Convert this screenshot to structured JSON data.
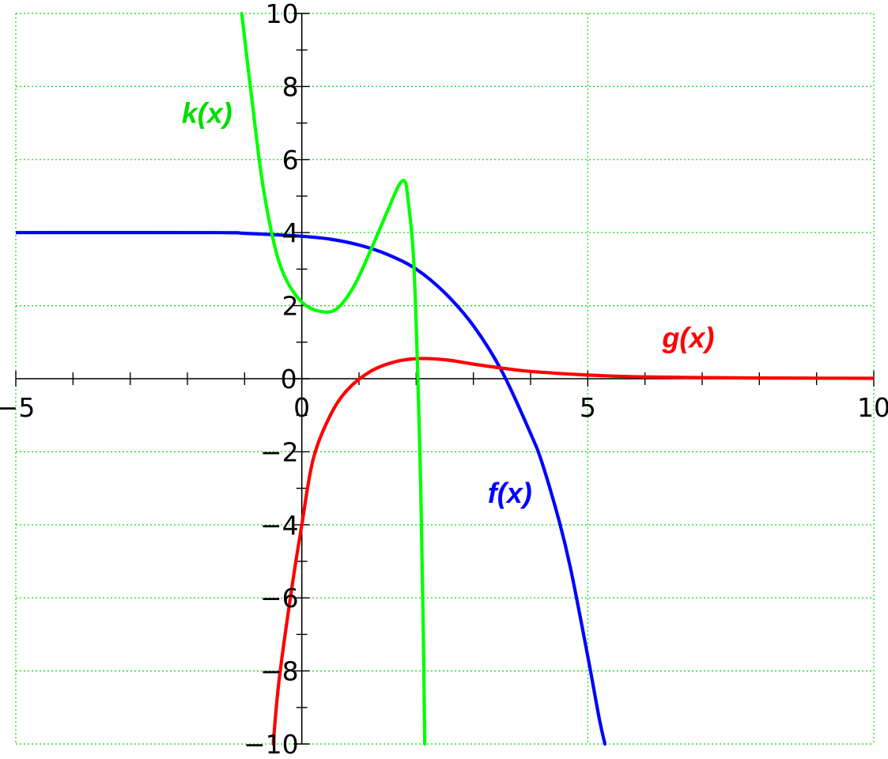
{
  "chart_data": {
    "type": "line",
    "title": "",
    "xlabel": "",
    "ylabel": "",
    "xlim": [
      -5,
      10
    ],
    "ylim": [
      -10,
      10
    ],
    "grid": true,
    "grid_color": "#00dd00",
    "x_tick_labels": [
      "−5",
      "0",
      "5",
      "10"
    ],
    "x_tick_values": [
      -5,
      0,
      5,
      10
    ],
    "y_tick_labels": [
      "−10",
      "−8",
      "−6",
      "−4",
      "−2",
      "0",
      "2",
      "4",
      "6",
      "8",
      "10"
    ],
    "y_tick_values": [
      -10,
      -8,
      -6,
      -4,
      -2,
      0,
      2,
      4,
      6,
      8,
      10
    ],
    "series": [
      {
        "name": "f(x)",
        "color": "#0000ff",
        "points": [
          [
            -5,
            4.0
          ],
          [
            -1.5,
            4.0
          ],
          [
            -1,
            3.98
          ],
          [
            0,
            3.9
          ],
          [
            0.5,
            3.82
          ],
          [
            1,
            3.66
          ],
          [
            1.5,
            3.4
          ],
          [
            2,
            3.0
          ],
          [
            2.5,
            2.35
          ],
          [
            3,
            1.45
          ],
          [
            3.5,
            0.2
          ],
          [
            4,
            -1.5
          ],
          [
            4.2,
            -2.3
          ],
          [
            4.5,
            -3.9
          ],
          [
            4.7,
            -5.2
          ],
          [
            5,
            -7.6
          ],
          [
            5.2,
            -9.3
          ],
          [
            5.3,
            -10
          ]
        ]
      },
      {
        "name": "g(x)",
        "color": "#ff0000",
        "points": [
          [
            -0.5,
            -10
          ],
          [
            -0.4,
            -8.3
          ],
          [
            -0.2,
            -6.0
          ],
          [
            0,
            -4.0
          ],
          [
            0.2,
            -2.2
          ],
          [
            0.5,
            -1.0
          ],
          [
            0.8,
            -0.3
          ],
          [
            1.2,
            0.2
          ],
          [
            1.6,
            0.45
          ],
          [
            2,
            0.55
          ],
          [
            2.5,
            0.52
          ],
          [
            3,
            0.4
          ],
          [
            3.5,
            0.29
          ],
          [
            4,
            0.2
          ],
          [
            5,
            0.1
          ],
          [
            6,
            0.05
          ],
          [
            7,
            0.03
          ],
          [
            8,
            0.02
          ],
          [
            10,
            0.01
          ]
        ]
      },
      {
        "name": "k(x)",
        "color": "#00ff00",
        "points": [
          [
            -1.05,
            10
          ],
          [
            -0.9,
            8.0
          ],
          [
            -0.7,
            5.5
          ],
          [
            -0.5,
            3.8
          ],
          [
            -0.3,
            2.8
          ],
          [
            0,
            2.1
          ],
          [
            0.3,
            1.85
          ],
          [
            0.6,
            1.9
          ],
          [
            0.9,
            2.5
          ],
          [
            1.2,
            3.5
          ],
          [
            1.5,
            4.6
          ],
          [
            1.7,
            5.3
          ],
          [
            1.8,
            5.4
          ],
          [
            1.85,
            5.0
          ],
          [
            1.95,
            3.4
          ],
          [
            2.02,
            0.5
          ],
          [
            2.08,
            -3.0
          ],
          [
            2.12,
            -6.5
          ],
          [
            2.15,
            -10
          ]
        ]
      }
    ],
    "curve_labels": [
      {
        "text": "k(x)",
        "x": -2.1,
        "y": 7.0,
        "color": "#00dd00"
      },
      {
        "text": "g(x)",
        "x": 6.3,
        "y": 0.85,
        "color": "#ff0000"
      },
      {
        "text": "f(x)",
        "x": 3.25,
        "y": -3.4,
        "color": "#0000ff"
      }
    ]
  }
}
